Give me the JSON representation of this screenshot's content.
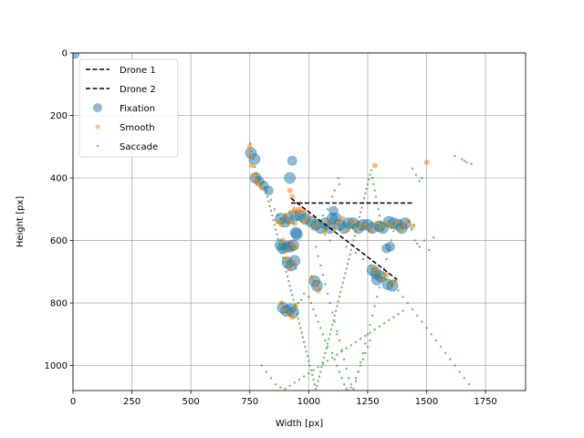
{
  "chart_data": {
    "type": "scatter",
    "xlabel": "Width [px]",
    "ylabel": "Height [px]",
    "xlim": [
      0,
      1920
    ],
    "ylim": [
      1080,
      0
    ],
    "y_inverted": true,
    "grid": true,
    "legend_position": "upper-left",
    "xticks": [
      0,
      250,
      500,
      750,
      1000,
      1250,
      1500,
      1750
    ],
    "yticks": [
      0,
      200,
      400,
      600,
      800,
      1000
    ],
    "lines": [
      {
        "name": "Drone 1",
        "style": "dashed",
        "color": "#000000",
        "x": [
          925,
          1445
        ],
        "y": [
          480,
          480
        ]
      },
      {
        "name": "Drone 2",
        "style": "dashed",
        "color": "#000000",
        "x": [
          925,
          1375
        ],
        "y": [
          465,
          725
        ]
      }
    ],
    "series": [
      {
        "name": "Fixation",
        "color": "#1f77b4",
        "x": [
          5,
          755,
          770,
          775,
          790,
          810,
          830,
          880,
          900,
          915,
          920,
          930,
          945,
          965,
          985,
          1010,
          1030,
          1050,
          1070,
          1090,
          1100,
          1115,
          1130,
          1150,
          1170,
          1190,
          1210,
          1230,
          1250,
          1270,
          1300,
          1315,
          1340,
          1360,
          1380,
          1395,
          1410,
          1330,
          1345,
          1270,
          1285,
          1305,
          1290,
          1335,
          1355,
          880,
          890,
          905,
          920,
          935,
          910,
          925,
          940,
          945,
          950,
          1025,
          1035,
          890,
          905,
          920,
          935,
          1105
        ],
        "y": [
          0,
          320,
          340,
          400,
          410,
          425,
          440,
          530,
          540,
          530,
          400,
          345,
          520,
          520,
          530,
          540,
          550,
          560,
          545,
          560,
          530,
          530,
          550,
          560,
          545,
          545,
          560,
          550,
          550,
          560,
          555,
          560,
          540,
          545,
          550,
          560,
          545,
          625,
          620,
          695,
          705,
          715,
          725,
          740,
          745,
          615,
          625,
          620,
          620,
          615,
          670,
          680,
          665,
          575,
          580,
          730,
          745,
          815,
          825,
          820,
          830,
          505
        ],
        "sizes": [
          6,
          6,
          6,
          6,
          5,
          5,
          5,
          6,
          6,
          6,
          6,
          5,
          6,
          6,
          6,
          6,
          6,
          6,
          6,
          6,
          6,
          6,
          6,
          6,
          6,
          6,
          6,
          6,
          6,
          6,
          6,
          6,
          6,
          6,
          6,
          6,
          6,
          5,
          5,
          6,
          6,
          6,
          6,
          6,
          6,
          6,
          6,
          6,
          6,
          6,
          6,
          6,
          6,
          6,
          6,
          6,
          6,
          6,
          6,
          6,
          6,
          5
        ]
      },
      {
        "name": "Smooth",
        "color": "#ff7f0e",
        "x": [
          750,
          755,
          760,
          770,
          775,
          785,
          800,
          870,
          885,
          900,
          915,
          925,
          940,
          960,
          980,
          1000,
          1020,
          1045,
          1065,
          1085,
          1105,
          1125,
          1145,
          1165,
          1185,
          1205,
          1225,
          1245,
          1265,
          1290,
          1310,
          1330,
          1350,
          1370,
          1390,
          1405,
          1420,
          1440,
          1275,
          1290,
          1310,
          1330,
          1350,
          1365,
          890,
          910,
          930,
          945,
          905,
          920,
          935,
          1015,
          1030,
          1040,
          885,
          900,
          915,
          930,
          945,
          920,
          930,
          940,
          960,
          980,
          1280,
          1500
        ],
        "y": [
          300,
          330,
          360,
          390,
          410,
          420,
          430,
          540,
          550,
          520,
          540,
          510,
          545,
          510,
          540,
          530,
          560,
          545,
          570,
          540,
          560,
          545,
          530,
          565,
          540,
          560,
          545,
          555,
          570,
          545,
          560,
          545,
          555,
          540,
          565,
          550,
          540,
          555,
          690,
          700,
          720,
          710,
          740,
          730,
          600,
          630,
          610,
          620,
          660,
          690,
          670,
          720,
          740,
          760,
          800,
          820,
          835,
          845,
          810,
          440,
          460,
          500,
          500,
          505,
          360,
          350
        ],
        "sizes": [
          3,
          3,
          3,
          3,
          3,
          3,
          3,
          3,
          3,
          3,
          3,
          3,
          3,
          3,
          3,
          3,
          3,
          3,
          3,
          3,
          3,
          3,
          3,
          3,
          3,
          3,
          3,
          3,
          3,
          3,
          3,
          3,
          3,
          3,
          3,
          3,
          3,
          3,
          3,
          3,
          3,
          3,
          3,
          3,
          3,
          3,
          3,
          3,
          3,
          3,
          3,
          3,
          3,
          3,
          3,
          3,
          3,
          3,
          3,
          3,
          3,
          3,
          3,
          3,
          3,
          3
        ]
      },
      {
        "name": "Saccade",
        "color": "#2ca02c",
        "x": [
          752,
          758,
          765,
          772,
          778,
          783,
          790,
          798,
          812,
          822,
          840,
          855,
          870,
          880,
          890,
          900,
          910,
          918,
          926,
          935,
          942,
          950,
          958,
          968,
          978,
          990,
          1002,
          1014,
          1026,
          1038,
          1050,
          1062,
          1075,
          1088,
          1100,
          1112,
          1124,
          1136,
          1148,
          1160,
          1172,
          1184,
          1196,
          1208,
          1220,
          1232,
          1244,
          1256,
          1268,
          1280,
          1292,
          1304,
          1316,
          1328,
          1340,
          1352,
          1364,
          1376,
          1388,
          1400,
          1412,
          1424,
          1436,
          1448,
          1270,
          1282,
          1294,
          1306,
          1318,
          1330,
          1342,
          1354,
          1366,
          882,
          894,
          906,
          918,
          930,
          942,
          898,
          910,
          922,
          934,
          946,
          1012,
          1024,
          1036,
          1048,
          884,
          896,
          908,
          920,
          932,
          944,
          956,
          968,
          980,
          1000,
          1010,
          1020,
          1030,
          1040,
          1050,
          1060,
          1070,
          1080,
          1100,
          1110,
          1120,
          1130,
          1140,
          1150,
          1160,
          1170,
          1180,
          1200,
          1210,
          1220,
          1230,
          1240,
          1250,
          1260,
          1120,
          1125,
          1130,
          1110,
          1100,
          1140,
          1080,
          1060,
          1040,
          1020,
          1070,
          1090,
          1160,
          1200,
          1230,
          1260,
          1290,
          1320,
          1350,
          1380,
          1400,
          1420,
          1440,
          1460,
          1480,
          1500,
          1520,
          1540,
          1560,
          1580,
          1600,
          1620,
          1640,
          1660,
          1680,
          1450,
          1460,
          1470,
          1490,
          1510,
          1530,
          1480,
          1620,
          1650,
          1670,
          1690,
          1660,
          1440,
          1455,
          1470,
          1030,
          1040,
          1050,
          1060,
          1070,
          1080,
          1090,
          1100,
          1110,
          1120,
          1130,
          1140,
          1150,
          1160,
          1170,
          1180,
          1190,
          1200,
          1210,
          1220,
          1230,
          1240,
          1250,
          1260,
          1270,
          1280,
          1290,
          1300,
          1310,
          1320,
          1330,
          1340,
          1350,
          1360,
          800,
          820,
          840,
          860,
          880,
          900,
          920,
          940,
          960,
          980,
          1000,
          1020,
          1040,
          1060,
          1080,
          1100,
          1120,
          1140,
          1160,
          1180,
          1200,
          1220,
          1240,
          1260,
          1280,
          1300,
          1320,
          1340,
          1360,
          1380,
          1400,
          1270,
          1275,
          1280,
          1285,
          1290,
          1295,
          1300,
          1305,
          1310,
          1265,
          1260,
          1255,
          1250,
          1245,
          1240,
          1235,
          1230,
          1225,
          1220,
          1215,
          1210,
          1205,
          1200,
          1195,
          1190,
          1185,
          1180,
          1175,
          1170,
          1165,
          1160,
          1155,
          1150,
          1145,
          1140,
          1135,
          1130,
          1125,
          1120,
          1115,
          1110,
          1105,
          1100,
          1095,
          1090,
          1085,
          1080,
          1075,
          1070,
          1065,
          1060,
          1055,
          1050,
          1045,
          1040,
          1035,
          1030,
          1025,
          1020,
          1015,
          1010,
          1005,
          1000,
          995,
          990,
          985,
          980,
          975,
          970,
          965,
          960,
          955,
          950,
          945,
          940,
          935,
          930,
          925,
          920,
          915,
          910,
          905,
          900,
          895,
          890,
          885,
          880,
          875,
          870,
          865,
          860,
          855,
          850,
          845,
          840,
          835,
          830,
          825,
          820,
          815,
          810
        ],
        "y": [
          290,
          315,
          340,
          365,
          385,
          395,
          405,
          420,
          430,
          440,
          470,
          500,
          520,
          530,
          545,
          520,
          540,
          510,
          530,
          545,
          510,
          535,
          525,
          540,
          520,
          545,
          535,
          550,
          540,
          560,
          545,
          555,
          565,
          540,
          560,
          535,
          550,
          565,
          540,
          555,
          545,
          560,
          550,
          540,
          565,
          545,
          555,
          570,
          545,
          560,
          550,
          540,
          565,
          550,
          540,
          560,
          545,
          555,
          535,
          560,
          550,
          540,
          565,
          550,
          690,
          700,
          710,
          720,
          705,
          725,
          735,
          745,
          730,
          600,
          615,
          625,
          610,
          630,
          620,
          655,
          670,
          685,
          675,
          690,
          715,
          730,
          745,
          755,
          800,
          815,
          830,
          840,
          825,
          810,
          800,
          790,
          770,
          780,
          800,
          820,
          840,
          860,
          880,
          900,
          920,
          940,
          960,
          980,
          1000,
          1020,
          1040,
          1060,
          1075,
          1080,
          1060,
          1040,
          1020,
          1000,
          980,
          960,
          940,
          920,
          900,
          400,
          420,
          440,
          460,
          480,
          500,
          520,
          540,
          560,
          580,
          600,
          620,
          640,
          660,
          680,
          700,
          720,
          740,
          760,
          780,
          800,
          820,
          840,
          860,
          880,
          900,
          920,
          940,
          960,
          980,
          1000,
          1020,
          1040,
          1060,
          600,
          610,
          620,
          600,
          630,
          590,
          400,
          330,
          340,
          350,
          355,
          345,
          370,
          390,
          410,
          620,
          650,
          680,
          710,
          740,
          770,
          800,
          830,
          860,
          890,
          920,
          950,
          980,
          1010,
          1040,
          1070,
          1075,
          1050,
          1020,
          990,
          960,
          930,
          900,
          870,
          840,
          810,
          780,
          750,
          720,
          690,
          660,
          630,
          600,
          570,
          1000,
          1020,
          1040,
          1060,
          1070,
          1075,
          1065,
          1055,
          1045,
          1035,
          1025,
          1015,
          1005,
          995,
          985,
          975,
          965,
          955,
          945,
          935,
          925,
          915,
          905,
          895,
          885,
          875,
          865,
          855,
          845,
          835,
          825,
          400,
          420,
          440,
          460,
          480,
          500,
          520,
          540,
          560,
          375,
          390,
          405,
          420,
          435,
          450,
          465,
          480,
          495,
          510,
          525,
          540,
          555,
          570,
          585,
          600,
          615,
          630,
          645,
          660,
          675,
          690,
          705,
          720,
          735,
          750,
          765,
          780,
          795,
          810,
          825,
          840,
          855,
          870,
          885,
          900,
          915,
          930,
          945,
          960,
          975,
          990,
          1005,
          1020,
          1035,
          1050,
          1065,
          1075,
          1060,
          1045,
          1030,
          1015,
          1000,
          985,
          970,
          955,
          940,
          925,
          910,
          895,
          880,
          865,
          850,
          835,
          820,
          805,
          790,
          775,
          760,
          745,
          730,
          715,
          700,
          685,
          670,
          655,
          640,
          625,
          610,
          595,
          580,
          565,
          550,
          535,
          520,
          505,
          490,
          475,
          460,
          445,
          430,
          415
        ],
        "sizes": [
          1.2
        ]
      }
    ],
    "legend": [
      "Drone 1",
      "Drone 2",
      "Fixation",
      "Smooth",
      "Saccade"
    ]
  }
}
